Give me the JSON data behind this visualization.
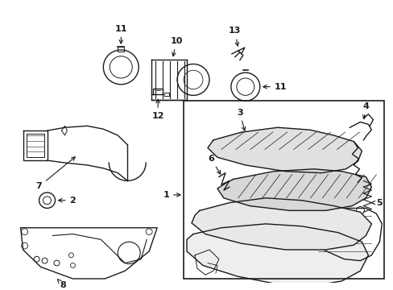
{
  "bg_color": "#ffffff",
  "line_color": "#1a1a1a",
  "fig_width": 4.89,
  "fig_height": 3.6,
  "dpi": 100,
  "font_size": 8.0
}
